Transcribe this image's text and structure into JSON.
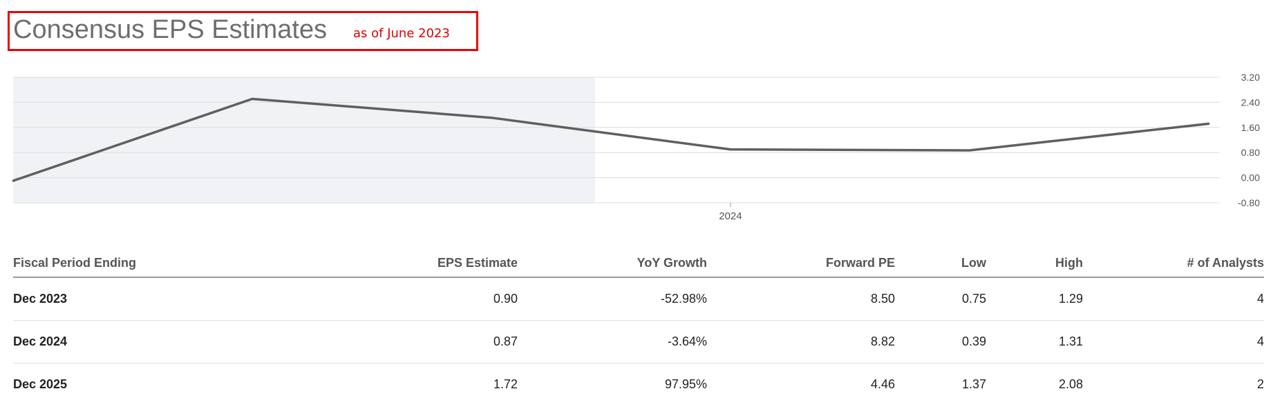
{
  "header": {
    "title": "Consensus EPS Estimates",
    "note": "as of June 2023"
  },
  "colors": {
    "line": "#5f5f5f",
    "grid": "#dcdcdc",
    "shade": "#f1f2f5",
    "title_border": "#ee0000",
    "note": "#dd0000"
  },
  "chart_data": {
    "type": "line",
    "x_ticks": [
      "2024"
    ],
    "y_ticks": [
      "3.20",
      "2.40",
      "1.60",
      "0.80",
      "0.00",
      "-0.80"
    ],
    "ylim": [
      -0.8,
      3.2
    ],
    "y_axis_side": "right",
    "grid": true,
    "shaded_region": "actuals (left portion)",
    "series": [
      {
        "values": [
          -0.1,
          2.51,
          1.91,
          0.9,
          0.87,
          1.72
        ]
      }
    ]
  },
  "table": {
    "columns": [
      "Fiscal Period Ending",
      "EPS Estimate",
      "YoY Growth",
      "Forward PE",
      "Low",
      "High",
      "# of Analysts"
    ],
    "rows": [
      [
        "Dec 2023",
        "0.90",
        "-52.98%",
        "8.50",
        "0.75",
        "1.29",
        "4"
      ],
      [
        "Dec 2024",
        "0.87",
        "-3.64%",
        "8.82",
        "0.39",
        "1.31",
        "4"
      ],
      [
        "Dec 2025",
        "1.72",
        "97.95%",
        "4.46",
        "1.37",
        "2.08",
        "2"
      ]
    ]
  }
}
